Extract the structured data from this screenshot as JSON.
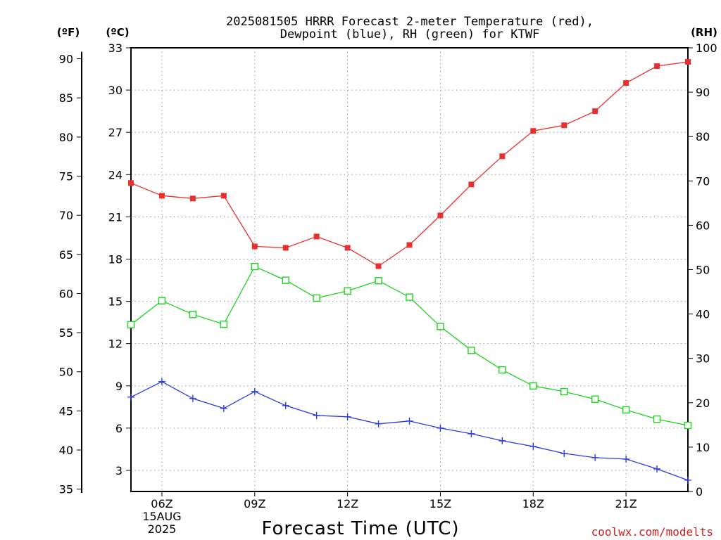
{
  "title_lines": [
    "2025081505 HRRR Forecast 2-meter Temperature (red),",
    "Dewpoint (blue), RH (green) for KTWF"
  ],
  "credit": "coolwx.com/modelts",
  "chart_data": {
    "type": "line",
    "title": "2025081505 HRRR Forecast 2-meter Temperature (red), Dewpoint (blue), RH (green) for KTWF",
    "xlabel": "Forecast Time (UTC)",
    "x_hours": [
      5,
      6,
      7,
      8,
      9,
      10,
      11,
      12,
      13,
      14,
      15,
      16,
      17,
      18,
      19,
      20,
      21,
      22,
      23
    ],
    "x_range": [
      5,
      23
    ],
    "x_ticks": [
      {
        "hour": 6,
        "lines": [
          "06Z",
          "15AUG",
          "2025"
        ]
      },
      {
        "hour": 9,
        "lines": [
          "09Z"
        ]
      },
      {
        "hour": 12,
        "lines": [
          "12Z"
        ]
      },
      {
        "hour": 15,
        "lines": [
          "15Z"
        ]
      },
      {
        "hour": 18,
        "lines": [
          "18Z"
        ]
      },
      {
        "hour": 21,
        "lines": [
          "21Z"
        ]
      }
    ],
    "axes": {
      "celsius": {
        "label": "(ºC)",
        "range": [
          1.5,
          33
        ],
        "ticks": [
          3,
          6,
          9,
          12,
          15,
          18,
          21,
          24,
          27,
          30,
          33
        ]
      },
      "fahrenheit": {
        "label": "(ºF)",
        "ticks": [
          35,
          40,
          45,
          50,
          55,
          60,
          65,
          70,
          75,
          80,
          85,
          90
        ]
      },
      "rh": {
        "label": "(RH)",
        "range": [
          0,
          100
        ],
        "ticks": [
          0,
          10,
          20,
          30,
          40,
          50,
          60,
          70,
          80,
          90,
          100
        ]
      }
    },
    "grid": true,
    "series": [
      {
        "name": "Temperature",
        "axis": "celsius",
        "color": "#e83030",
        "marker": "filled-square",
        "values": [
          23.4,
          22.5,
          22.3,
          22.5,
          18.9,
          18.8,
          19.6,
          18.8,
          17.5,
          19.0,
          21.1,
          23.3,
          25.3,
          27.1,
          27.5,
          28.5,
          30.5,
          31.7,
          32.0
        ]
      },
      {
        "name": "Dewpoint",
        "axis": "celsius",
        "color": "#2a3ce0",
        "marker": "plus",
        "values": [
          8.2,
          9.3,
          8.1,
          7.4,
          8.6,
          7.6,
          6.9,
          6.8,
          6.3,
          6.5,
          6.0,
          5.6,
          5.1,
          4.7,
          4.2,
          3.9,
          3.8,
          3.1,
          2.3
        ]
      },
      {
        "name": "RH",
        "axis": "rh",
        "color": "#1ed21e",
        "marker": "open-square",
        "values": [
          37.6,
          43.0,
          39.9,
          37.7,
          50.7,
          47.6,
          43.6,
          45.2,
          47.5,
          43.8,
          37.2,
          31.8,
          27.4,
          23.8,
          22.5,
          20.8,
          18.4,
          16.3,
          14.9
        ]
      }
    ]
  }
}
